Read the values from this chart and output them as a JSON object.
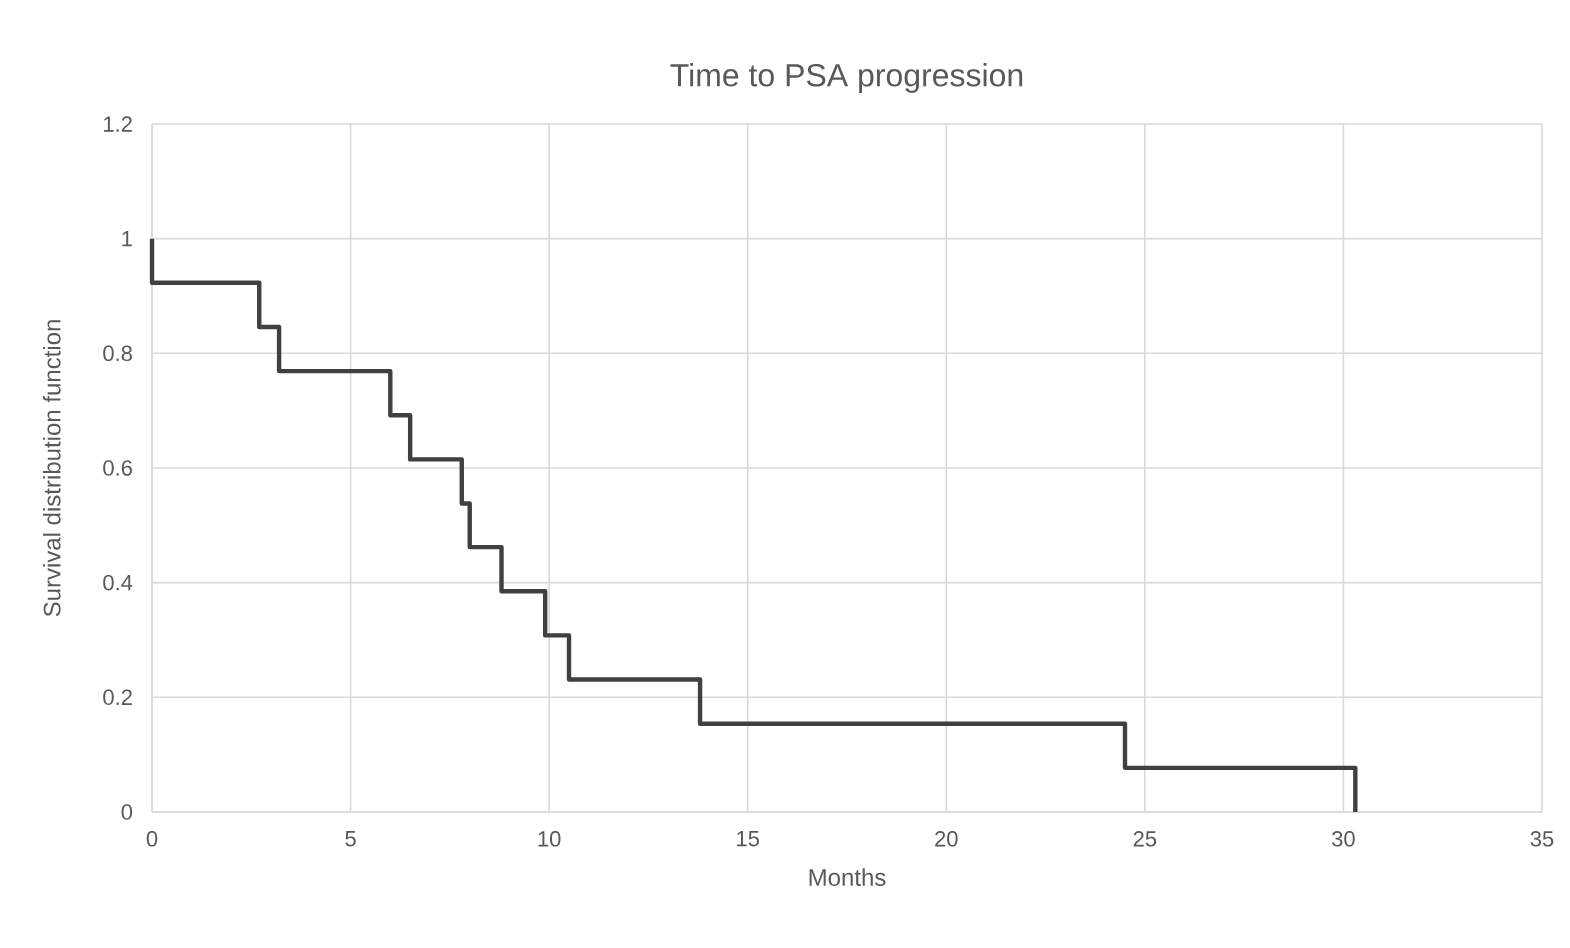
{
  "chart_data": {
    "type": "step",
    "title": "Time to PSA progression",
    "xlabel": "Months",
    "ylabel": "Survival distribution function",
    "x": [
      0,
      0,
      2.7,
      3.2,
      6.0,
      6.5,
      7.8,
      8.0,
      8.8,
      9.9,
      10.5,
      13.8,
      24.5,
      30.3
    ],
    "values": [
      1,
      0.923,
      0.846,
      0.769,
      0.692,
      0.615,
      0.538,
      0.462,
      0.385,
      0.308,
      0.231,
      0.154,
      0.077,
      0
    ],
    "color": "#404040",
    "xlim": [
      0,
      35
    ],
    "xticks": [
      0,
      5,
      10,
      15,
      20,
      25,
      30,
      35
    ],
    "ylim": [
      0,
      1.2
    ],
    "yticks": [
      0,
      0.2,
      0.4,
      0.6,
      0.8,
      1,
      1.2
    ],
    "grid": true,
    "marker": "none",
    "line_style": "solid"
  }
}
